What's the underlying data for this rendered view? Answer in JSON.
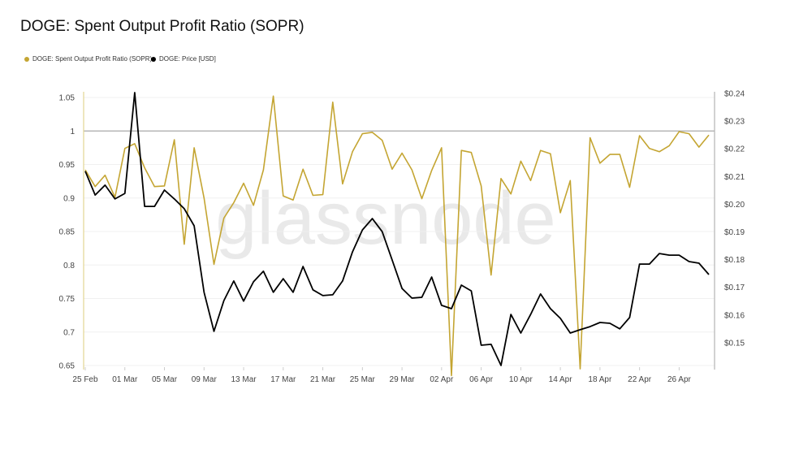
{
  "chart_data": {
    "type": "line",
    "title": "DOGE: Spent Output Profit Ratio (SOPR)",
    "watermark": "glassnode",
    "legend_position": "top-left",
    "grid": true,
    "x": [
      "25 Feb",
      "26 Feb",
      "27 Feb",
      "28 Feb",
      "01 Mar",
      "02 Mar",
      "03 Mar",
      "04 Mar",
      "05 Mar",
      "06 Mar",
      "07 Mar",
      "08 Mar",
      "09 Mar",
      "10 Mar",
      "11 Mar",
      "12 Mar",
      "13 Mar",
      "14 Mar",
      "15 Mar",
      "16 Mar",
      "17 Mar",
      "18 Mar",
      "19 Mar",
      "20 Mar",
      "21 Mar",
      "22 Mar",
      "23 Mar",
      "24 Mar",
      "25 Mar",
      "26 Mar",
      "27 Mar",
      "28 Mar",
      "29 Mar",
      "30 Mar",
      "31 Mar",
      "01 Apr",
      "02 Apr",
      "03 Apr",
      "04 Apr",
      "05 Apr",
      "06 Apr",
      "07 Apr",
      "08 Apr",
      "09 Apr",
      "10 Apr",
      "11 Apr",
      "12 Apr",
      "13 Apr",
      "14 Apr",
      "15 Apr",
      "16 Apr",
      "17 Apr",
      "18 Apr",
      "19 Apr",
      "20 Apr",
      "21 Apr",
      "22 Apr",
      "23 Apr",
      "24 Apr",
      "25 Apr",
      "26 Apr",
      "27 Apr",
      "28 Apr",
      "29 Apr"
    ],
    "x_tick_labels": [
      "25 Feb",
      "01 Mar",
      "05 Mar",
      "09 Mar",
      "13 Mar",
      "17 Mar",
      "21 Mar",
      "25 Mar",
      "29 Mar",
      "02 Apr",
      "06 Apr",
      "10 Apr",
      "14 Apr",
      "18 Apr",
      "22 Apr",
      "26 Apr"
    ],
    "y_left": {
      "ticks": [
        "1.05",
        "1",
        "0.95",
        "0.9",
        "0.85",
        "0.8",
        "0.75",
        "0.7",
        "0.65"
      ],
      "range": [
        0.65,
        1.058
      ],
      "reference_line": 1
    },
    "y_right": {
      "ticks": [
        "$0.24",
        "$0.23",
        "$0.22",
        "$0.21",
        "$0.20",
        "$0.19",
        "$0.18",
        "$0.17",
        "$0.16",
        "$0.15"
      ],
      "range": [
        0.142,
        0.2405
      ]
    },
    "series": [
      {
        "name": "DOGE: Spent Output Profit Ratio (SOPR)",
        "axis": "left",
        "color": "#c4a532",
        "values": [
          0.942,
          0.917,
          0.934,
          0.901,
          0.974,
          0.981,
          0.945,
          0.917,
          0.918,
          0.987,
          0.831,
          0.975,
          0.9,
          0.801,
          0.87,
          0.893,
          0.922,
          0.889,
          0.942,
          1.052,
          0.903,
          0.897,
          0.943,
          0.904,
          0.905,
          1.043,
          0.921,
          0.969,
          0.996,
          0.998,
          0.986,
          0.943,
          0.967,
          0.942,
          0.899,
          0.941,
          0.975,
          0.635,
          0.971,
          0.968,
          0.918,
          0.785,
          0.929,
          0.906,
          0.955,
          0.926,
          0.971,
          0.966,
          0.878,
          0.926,
          0.645,
          0.99,
          0.952,
          0.965,
          0.965,
          0.916,
          0.993,
          0.974,
          0.969,
          0.978,
          0.999,
          0.996,
          0.976,
          0.994
        ]
      },
      {
        "name": "DOGE: Price [USD]",
        "axis": "right",
        "color": "#000000",
        "values": [
          0.2119,
          0.2033,
          0.2069,
          0.2019,
          0.2039,
          0.2403,
          0.1992,
          0.1992,
          0.2051,
          0.2019,
          0.1984,
          0.1922,
          0.1682,
          0.1541,
          0.1652,
          0.1723,
          0.165,
          0.172,
          0.1758,
          0.1682,
          0.1731,
          0.1682,
          0.1775,
          0.1691,
          0.167,
          0.1673,
          0.1723,
          0.1828,
          0.1907,
          0.1948,
          0.1901,
          0.1799,
          0.1696,
          0.1661,
          0.1664,
          0.1737,
          0.1635,
          0.1623,
          0.1708,
          0.1687,
          0.1491,
          0.1494,
          0.1418,
          0.1602,
          0.1535,
          0.1602,
          0.1676,
          0.1623,
          0.1588,
          0.1535,
          0.1547,
          0.1558,
          0.1573,
          0.157,
          0.155,
          0.1591,
          0.1784,
          0.1784,
          0.1822,
          0.1816,
          0.1816,
          0.1793,
          0.1787,
          0.1746
        ]
      }
    ]
  }
}
